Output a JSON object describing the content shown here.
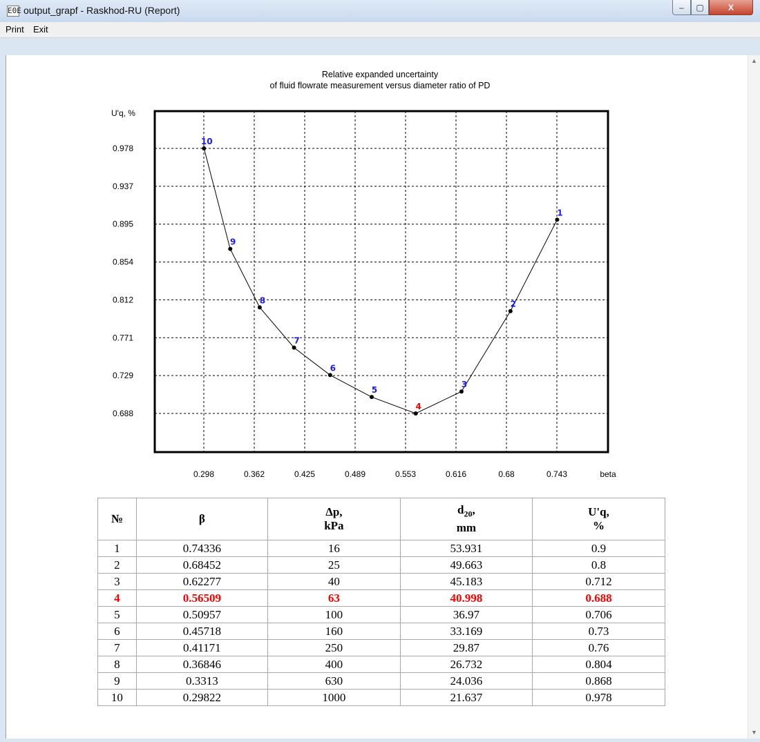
{
  "window": {
    "icon_text": "E0E",
    "title": "output_grapf - Raskhod-RU (Report)",
    "buttons": {
      "minimize": "–",
      "maximize": "▢",
      "close": "X"
    }
  },
  "menu": {
    "items": [
      "Print",
      "Exit"
    ]
  },
  "chart_data": {
    "type": "line",
    "title": "Relative expanded uncertainty",
    "subtitle": "of fluid flowrate measurement versus diameter ratio of PD",
    "ylabel": "U'q, %",
    "xlabel": "beta",
    "x_ticks": [
      "0.298",
      "0.362",
      "0.425",
      "0.489",
      "0.553",
      "0.616",
      "0.68",
      "0.743"
    ],
    "y_ticks": [
      "0.978",
      "0.937",
      "0.895",
      "0.854",
      "0.812",
      "0.771",
      "0.729",
      "0.688"
    ],
    "xlim": [
      0.298,
      0.743
    ],
    "ylim": [
      0.688,
      0.978
    ],
    "grid": true,
    "highlight_index": 3,
    "highlight_color": "#ff0000",
    "label_color": "#1a1aff",
    "points": [
      {
        "label": "1",
        "x": 0.74336,
        "y": 0.9
      },
      {
        "label": "2",
        "x": 0.68452,
        "y": 0.8
      },
      {
        "label": "3",
        "x": 0.62277,
        "y": 0.712
      },
      {
        "label": "4",
        "x": 0.56509,
        "y": 0.688
      },
      {
        "label": "5",
        "x": 0.50957,
        "y": 0.706
      },
      {
        "label": "6",
        "x": 0.45718,
        "y": 0.73
      },
      {
        "label": "7",
        "x": 0.41171,
        "y": 0.76
      },
      {
        "label": "8",
        "x": 0.36846,
        "y": 0.804
      },
      {
        "label": "9",
        "x": 0.3313,
        "y": 0.868
      },
      {
        "label": "10",
        "x": 0.29822,
        "y": 0.978
      }
    ]
  },
  "table": {
    "headers": {
      "num": "№",
      "beta": "β",
      "dp_line1": "Δp,",
      "dp_line2": "kPa",
      "d20_main": "d",
      "d20_sub": "20",
      "d20_comma": ",",
      "d20_line2": "mm",
      "uq_line1": "U'q,",
      "uq_line2": "%"
    },
    "highlight_row": 3,
    "rows": [
      [
        "1",
        "0.74336",
        "16",
        "53.931",
        "0.9"
      ],
      [
        "2",
        "0.68452",
        "25",
        "49.663",
        "0.8"
      ],
      [
        "3",
        "0.62277",
        "40",
        "45.183",
        "0.712"
      ],
      [
        "4",
        "0.56509",
        "63",
        "40.998",
        "0.688"
      ],
      [
        "5",
        "0.50957",
        "100",
        "36.97",
        "0.706"
      ],
      [
        "6",
        "0.45718",
        "160",
        "33.169",
        "0.73"
      ],
      [
        "7",
        "0.41171",
        "250",
        "29.87",
        "0.76"
      ],
      [
        "8",
        "0.36846",
        "400",
        "26.732",
        "0.804"
      ],
      [
        "9",
        "0.3313",
        "630",
        "24.036",
        "0.868"
      ],
      [
        "10",
        "0.29822",
        "1000",
        "21.637",
        "0.978"
      ]
    ]
  }
}
